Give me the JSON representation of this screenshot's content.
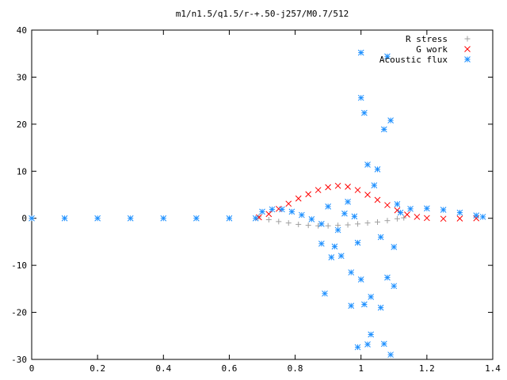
{
  "chart_data": {
    "type": "scatter",
    "title": "m1/n1.5/q1.5/r-+.50-j257/M0.7/512",
    "xlabel": "",
    "ylabel": "",
    "xlim": [
      0,
      1.4
    ],
    "ylim": [
      -30,
      40
    ],
    "x_ticks": [
      "0",
      "0.2",
      "0.4",
      "0.6",
      "0.8",
      "1",
      "1.2",
      "1.4"
    ],
    "y_ticks": [
      "40",
      "30",
      "20",
      "10",
      "0",
      "-10",
      "-20",
      "-30"
    ],
    "grid": false,
    "legend_position": "top-right",
    "series": [
      {
        "name": "R stress",
        "marker": "plus",
        "color": "#a0a0a0",
        "points": [
          [
            0.69,
            0.3
          ],
          [
            0.72,
            -0.3
          ],
          [
            0.75,
            -0.7
          ],
          [
            0.78,
            -1.0
          ],
          [
            0.81,
            -1.3
          ],
          [
            0.84,
            -1.5
          ],
          [
            0.87,
            -1.6
          ],
          [
            0.9,
            -1.6
          ],
          [
            0.93,
            -1.5
          ],
          [
            0.96,
            -1.4
          ],
          [
            0.99,
            -1.2
          ],
          [
            1.02,
            -1.0
          ],
          [
            1.05,
            -0.8
          ],
          [
            1.08,
            -0.5
          ],
          [
            1.11,
            -0.1
          ],
          [
            1.13,
            0.1
          ]
        ]
      },
      {
        "name": "G work",
        "marker": "cross",
        "color": "#ff0000",
        "points": [
          [
            0.69,
            0.2
          ],
          [
            0.72,
            0.9
          ],
          [
            0.75,
            2.0
          ],
          [
            0.78,
            3.1
          ],
          [
            0.81,
            4.2
          ],
          [
            0.84,
            5.1
          ],
          [
            0.87,
            6.0
          ],
          [
            0.9,
            6.6
          ],
          [
            0.93,
            6.9
          ],
          [
            0.96,
            6.7
          ],
          [
            0.99,
            6.0
          ],
          [
            1.02,
            5.0
          ],
          [
            1.05,
            3.9
          ],
          [
            1.08,
            2.8
          ],
          [
            1.11,
            1.7
          ],
          [
            1.14,
            0.8
          ],
          [
            1.17,
            0.3
          ],
          [
            1.2,
            0.05
          ],
          [
            1.25,
            -0.1
          ],
          [
            1.3,
            -0.05
          ],
          [
            1.35,
            0.0
          ]
        ]
      },
      {
        "name": "Acoustic flux",
        "marker": "star",
        "color": "#1e90ff",
        "points": [
          [
            0.0,
            0.0
          ],
          [
            0.1,
            0.0
          ],
          [
            0.2,
            0.0
          ],
          [
            0.3,
            0.0
          ],
          [
            0.4,
            0.0
          ],
          [
            0.5,
            0.0
          ],
          [
            0.6,
            0.0
          ],
          [
            0.68,
            0.0
          ],
          [
            0.7,
            1.4
          ],
          [
            0.73,
            1.9
          ],
          [
            0.76,
            1.9
          ],
          [
            0.79,
            1.4
          ],
          [
            0.82,
            0.7
          ],
          [
            0.85,
            -0.2
          ],
          [
            0.88,
            -1.2
          ],
          [
            1.12,
            1.2
          ],
          [
            1.15,
            2.0
          ],
          [
            1.2,
            2.1
          ],
          [
            1.25,
            1.8
          ],
          [
            1.3,
            1.2
          ],
          [
            1.35,
            0.6
          ],
          [
            1.37,
            0.3
          ],
          [
            1.0,
            35.2
          ],
          [
            1.0,
            25.6
          ],
          [
            1.01,
            22.4
          ],
          [
            1.08,
            34.4
          ],
          [
            1.07,
            18.9
          ],
          [
            1.09,
            20.8
          ],
          [
            0.9,
            2.5
          ],
          [
            0.93,
            -2.5
          ],
          [
            0.96,
            3.5
          ],
          [
            0.99,
            -5.2
          ],
          [
            1.02,
            11.4
          ],
          [
            1.04,
            7.0
          ],
          [
            0.88,
            -5.4
          ],
          [
            0.91,
            -8.3
          ],
          [
            0.94,
            -8.0
          ],
          [
            0.97,
            -11.5
          ],
          [
            1.0,
            -13.0
          ],
          [
            1.03,
            -16.7
          ],
          [
            0.92,
            -6.0
          ],
          [
            0.95,
            1.0
          ],
          [
            0.98,
            0.4
          ],
          [
            1.06,
            -4.0
          ],
          [
            1.1,
            -6.1
          ],
          [
            1.05,
            10.4
          ],
          [
            0.89,
            -16.0
          ],
          [
            0.97,
            -18.6
          ],
          [
            1.01,
            -18.3
          ],
          [
            1.03,
            -24.7
          ],
          [
            0.99,
            -27.4
          ],
          [
            1.08,
            -12.6
          ],
          [
            1.1,
            -14.4
          ],
          [
            1.07,
            -26.7
          ],
          [
            1.09,
            -29.0
          ],
          [
            1.06,
            -19.0
          ],
          [
            1.02,
            -26.8
          ],
          [
            1.11,
            3.0
          ]
        ]
      }
    ]
  }
}
